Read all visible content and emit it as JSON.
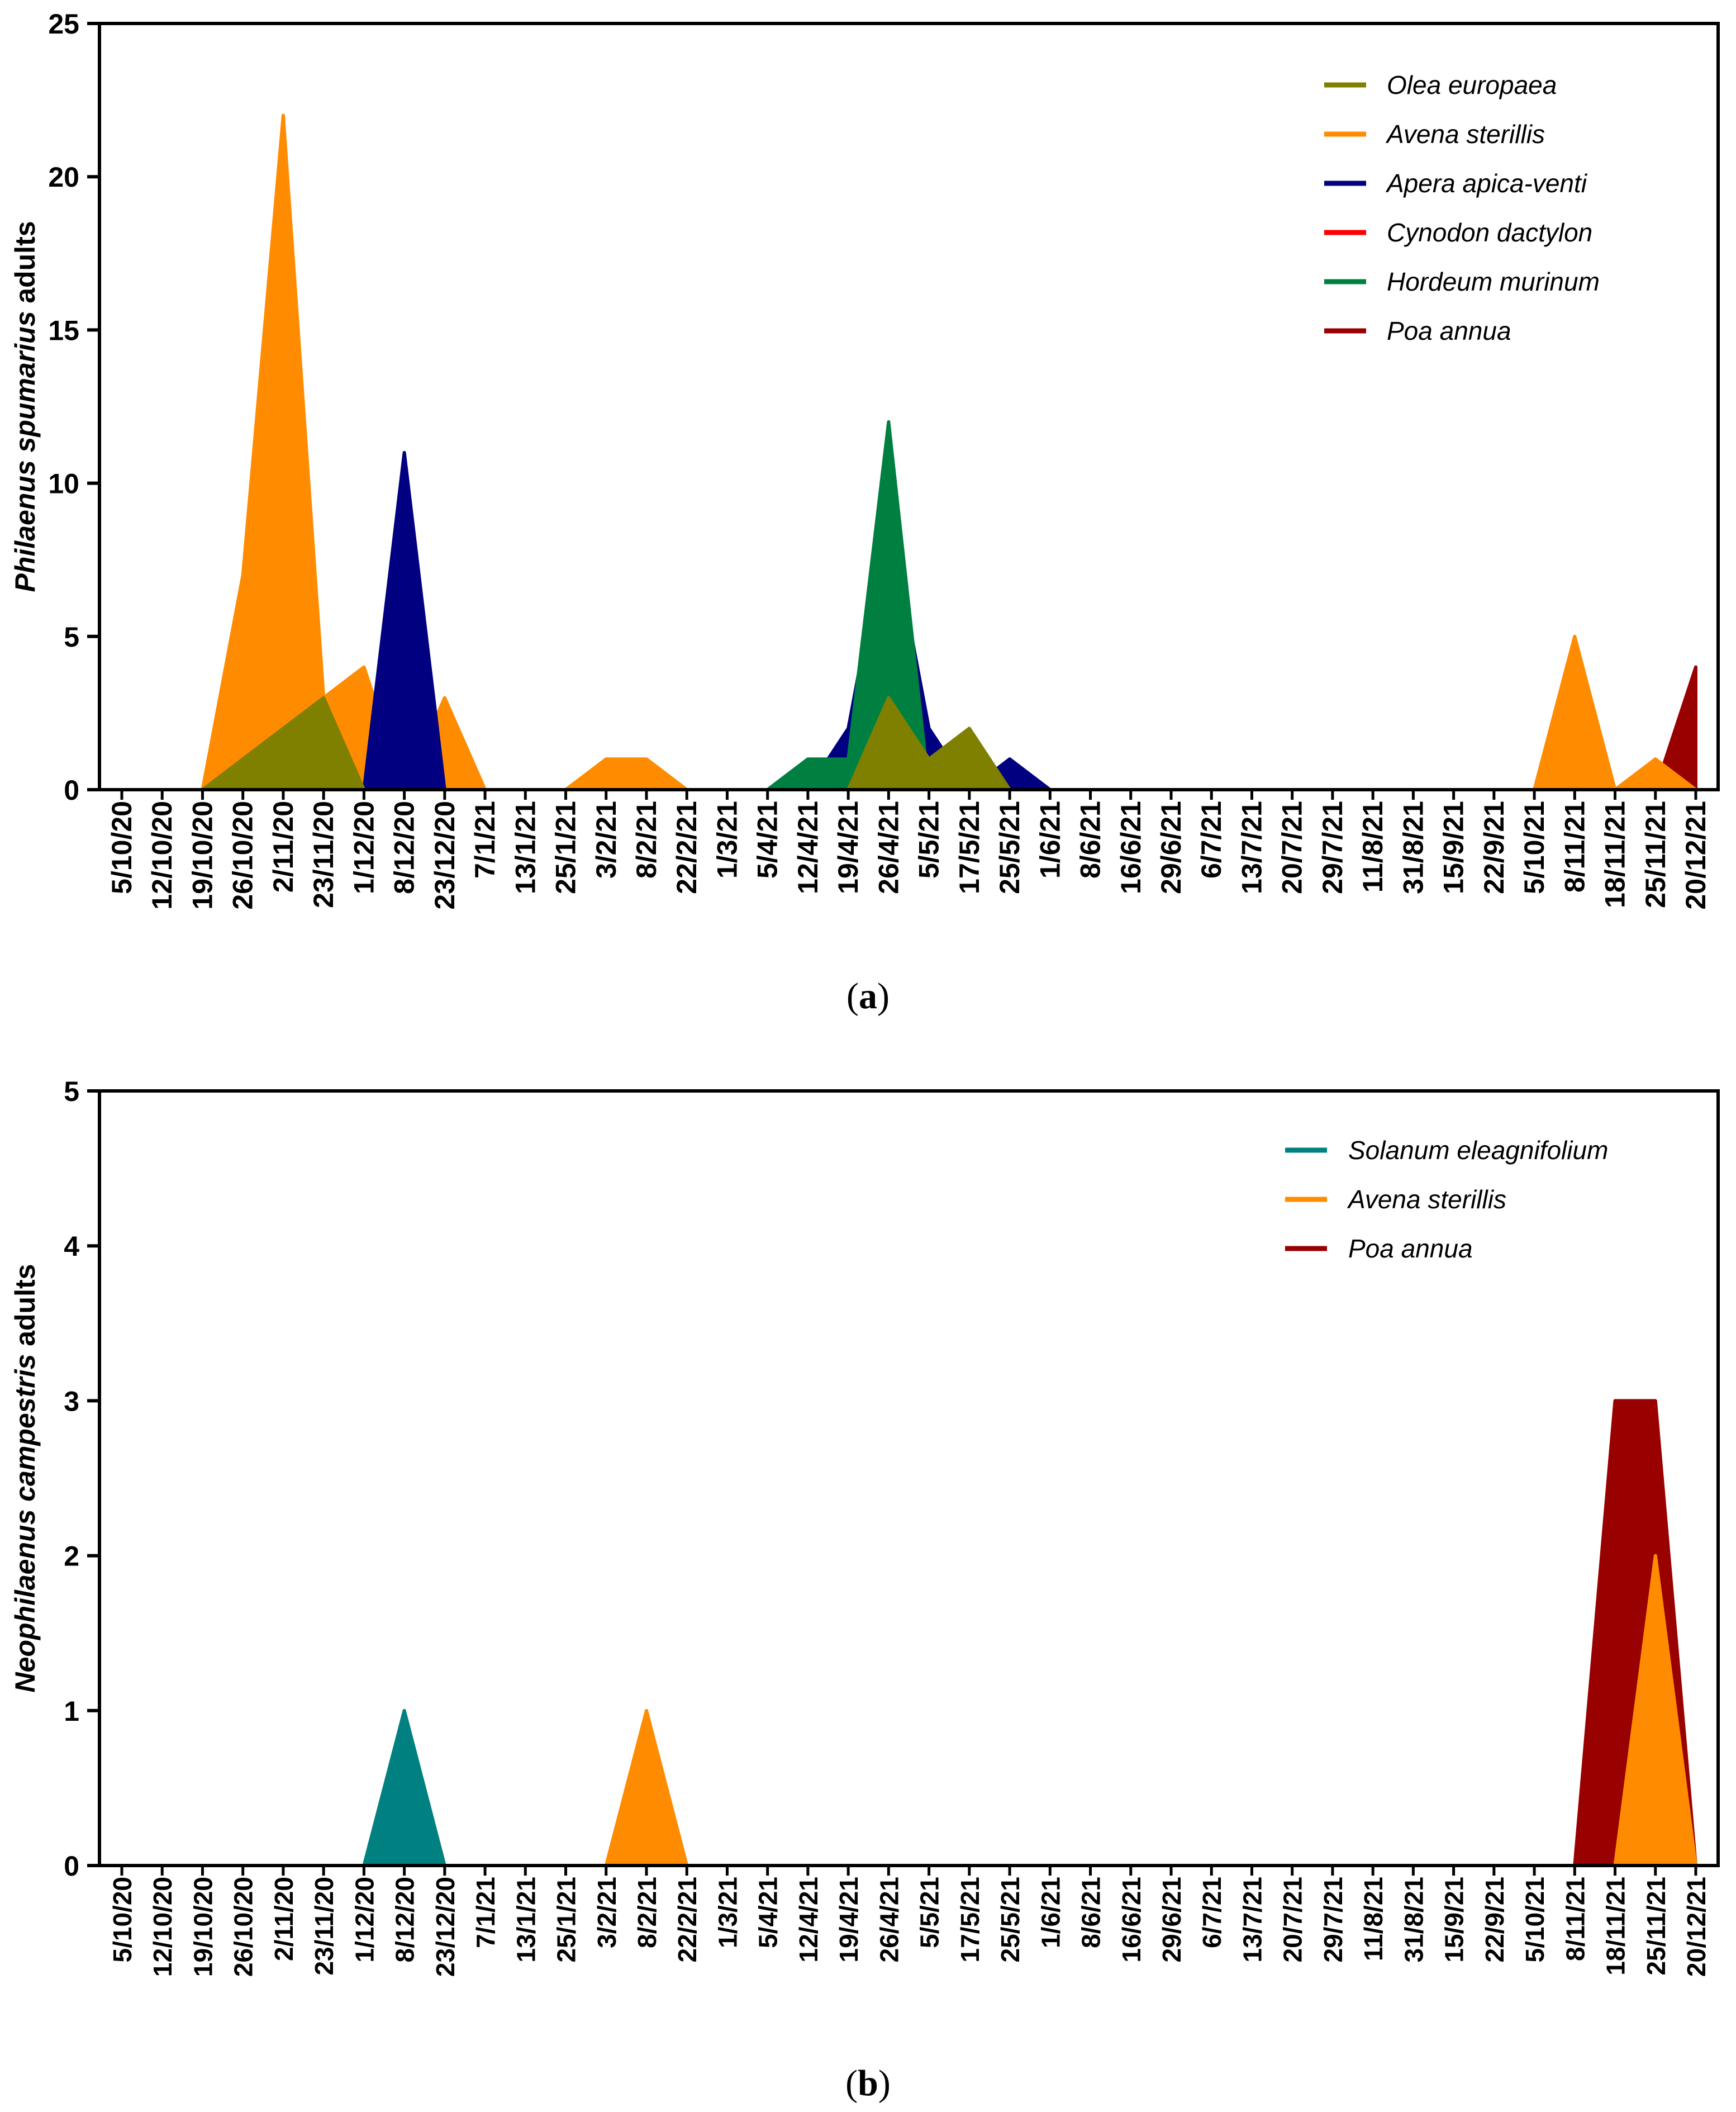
{
  "chart_data": [
    {
      "type": "area",
      "panel": "a",
      "caption_letter": "a",
      "ylabel_italic": "Philaenus spumarius",
      "ylabel_rest": " adults",
      "xlabel": "",
      "ylim": [
        0,
        25
      ],
      "yticks": [
        0,
        5,
        10,
        15,
        20,
        25
      ],
      "legend_position": "top-right",
      "categories": [
        "5/10/20",
        "12/10/20",
        "19/10/20",
        "26/10/20",
        "2/11/20",
        "23/11/20",
        "1/12/20",
        "8/12/20",
        "23/12/20",
        "7/1/21",
        "13/1/21",
        "25/1/21",
        "3/2/21",
        "8/2/21",
        "22/2/21",
        "1/3/21",
        "5/4/21",
        "12/4/21",
        "19/4/21",
        "26/4/21",
        "5/5/21",
        "17/5/21",
        "25/5/21",
        "1/6/21",
        "8/6/21",
        "16/6/21",
        "29/6/21",
        "6/7/21",
        "13/7/21",
        "20/7/21",
        "29/7/21",
        "11/8/21",
        "31/8/21",
        "15/9/21",
        "22/9/21",
        "5/10/21",
        "8/11/21",
        "18/11/21",
        "25/11/21",
        "20/12/21"
      ],
      "series": [
        {
          "name": "Olea europaea",
          "color": "#808000",
          "values": [
            0,
            0,
            0,
            1,
            2,
            3,
            0,
            0,
            0,
            0,
            0,
            0,
            0,
            0,
            0,
            0,
            0,
            0,
            0,
            3,
            1,
            2,
            0,
            0,
            0,
            0,
            0,
            0,
            0,
            0,
            0,
            0,
            0,
            0,
            0,
            0,
            0,
            0,
            0,
            0
          ]
        },
        {
          "name": "Avena sterillis",
          "color": "#ff8c00",
          "values": [
            0,
            0,
            0,
            7,
            22,
            3,
            4,
            0,
            3,
            0,
            0,
            0,
            1,
            1,
            0,
            0,
            0,
            0,
            0,
            0,
            0,
            0,
            0,
            0,
            0,
            0,
            0,
            0,
            0,
            0,
            0,
            0,
            0,
            0,
            0,
            0,
            5,
            0,
            1,
            0
          ]
        },
        {
          "name": "Apera apica-venti",
          "color": "#000080",
          "values": [
            0,
            0,
            0,
            0,
            0,
            0,
            0,
            11,
            0,
            0,
            0,
            0,
            0,
            0,
            0,
            0,
            0,
            0,
            2,
            9,
            2,
            0,
            1,
            0,
            0,
            0,
            0,
            0,
            0,
            0,
            0,
            0,
            0,
            0,
            0,
            0,
            0,
            0,
            0,
            0
          ]
        },
        {
          "name": "Cynodon dactylon",
          "color": "#ff0000",
          "values": [
            0,
            0,
            0,
            0,
            0,
            0,
            0,
            0,
            0,
            0,
            0,
            0,
            0,
            0,
            0,
            0,
            0,
            0,
            0,
            0,
            0,
            0,
            0,
            0,
            0,
            0,
            0,
            0,
            0,
            0,
            0,
            0,
            0,
            0,
            0,
            0,
            0,
            0,
            0,
            0
          ]
        },
        {
          "name": "Hordeum murinum",
          "color": "#008040",
          "values": [
            0,
            0,
            0,
            0,
            0,
            0,
            0,
            0,
            0,
            0,
            0,
            0,
            0,
            0,
            0,
            0,
            0,
            1,
            1,
            12,
            0,
            0,
            0,
            0,
            0,
            0,
            0,
            0,
            0,
            0,
            0,
            0,
            0,
            0,
            0,
            0,
            0,
            0,
            0,
            0
          ]
        },
        {
          "name": "Poa annua",
          "color": "#990000",
          "values": [
            0,
            0,
            0,
            0,
            0,
            0,
            0,
            0,
            0,
            0,
            0,
            0,
            0,
            0,
            0,
            0,
            0,
            0,
            0,
            0,
            0,
            0,
            0,
            0,
            0,
            0,
            0,
            0,
            0,
            0,
            0,
            0,
            0,
            0,
            0,
            0,
            0,
            0,
            0,
            4
          ]
        }
      ],
      "draw_order": [
        "Poa annua",
        "Avena sterillis",
        "Apera apica-venti",
        "Hordeum murinum",
        "Cynodon dactylon",
        "Olea europaea"
      ]
    },
    {
      "type": "area",
      "panel": "b",
      "caption_letter": "b",
      "ylabel_italic": "Neophilaenus campestris",
      "ylabel_rest": " adults",
      "xlabel": "",
      "ylim": [
        0,
        5
      ],
      "yticks": [
        0,
        1,
        2,
        3,
        4,
        5
      ],
      "legend_position": "top-right",
      "categories": [
        "5/10/20",
        "12/10/20",
        "19/10/20",
        "26/10/20",
        "2/11/20",
        "23/11/20",
        "1/12/20",
        "8/12/20",
        "23/12/20",
        "7/1/21",
        "13/1/21",
        "25/1/21",
        "3/2/21",
        "8/2/21",
        "22/2/21",
        "1/3/21",
        "5/4/21",
        "12/4/21",
        "19/4/21",
        "26/4/21",
        "5/5/21",
        "17/5/21",
        "25/5/21",
        "1/6/21",
        "8/6/21",
        "16/6/21",
        "29/6/21",
        "6/7/21",
        "13/7/21",
        "20/7/21",
        "29/7/21",
        "11/8/21",
        "31/8/21",
        "15/9/21",
        "22/9/21",
        "5/10/21",
        "8/11/21",
        "18/11/21",
        "25/11/21",
        "20/12/21"
      ],
      "series": [
        {
          "name": "Solanum eleagnifolium",
          "color": "#008080",
          "values": [
            0,
            0,
            0,
            0,
            0,
            0,
            0,
            1,
            0,
            0,
            0,
            0,
            0,
            0,
            0,
            0,
            0,
            0,
            0,
            0,
            0,
            0,
            0,
            0,
            0,
            0,
            0,
            0,
            0,
            0,
            0,
            0,
            0,
            0,
            0,
            0,
            0,
            0,
            0,
            0
          ]
        },
        {
          "name": "Avena sterillis",
          "color": "#ff8c00",
          "values": [
            0,
            0,
            0,
            0,
            0,
            0,
            0,
            0,
            0,
            0,
            0,
            0,
            0,
            1,
            0,
            0,
            0,
            0,
            0,
            0,
            0,
            0,
            0,
            0,
            0,
            0,
            0,
            0,
            0,
            0,
            0,
            0,
            0,
            0,
            0,
            0,
            0,
            0,
            2,
            0
          ]
        },
        {
          "name": "Poa annua",
          "color": "#990000",
          "values": [
            0,
            0,
            0,
            0,
            0,
            0,
            0,
            0,
            0,
            0,
            0,
            0,
            0,
            0,
            0,
            0,
            0,
            0,
            0,
            0,
            0,
            0,
            0,
            0,
            0,
            0,
            0,
            0,
            0,
            0,
            0,
            0,
            0,
            0,
            0,
            0,
            0,
            3,
            3,
            0
          ]
        }
      ],
      "draw_order": [
        "Poa annua",
        "Avena sterillis",
        "Solanum eleagnifolium"
      ]
    }
  ]
}
